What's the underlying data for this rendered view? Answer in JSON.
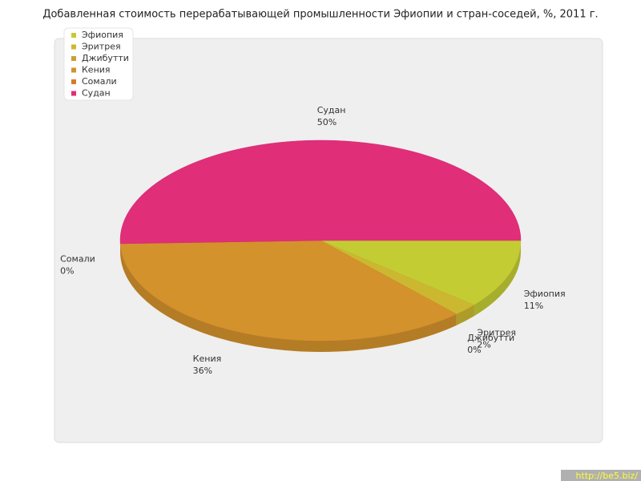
{
  "chart_data": {
    "type": "pie",
    "title": "Добавленная стоимость перерабатывающей промышленности Эфиопии и стран-соседей, %, 2011 г.",
    "categories": [
      "Эфиопия",
      "Эритрея",
      "Джибутти",
      "Кения",
      "Сомали",
      "Судан"
    ],
    "values": [
      11,
      2,
      0,
      36,
      0,
      50
    ],
    "value_labels": [
      "11%",
      "2%",
      "0%",
      "36%",
      "0%",
      "50%"
    ],
    "colors": [
      "#c4cc34",
      "#ccb830",
      "#cca030",
      "#d4922c",
      "#d87c28",
      "#e02e78"
    ],
    "legend": "top-left"
  },
  "watermark": "http://be5.biz/"
}
